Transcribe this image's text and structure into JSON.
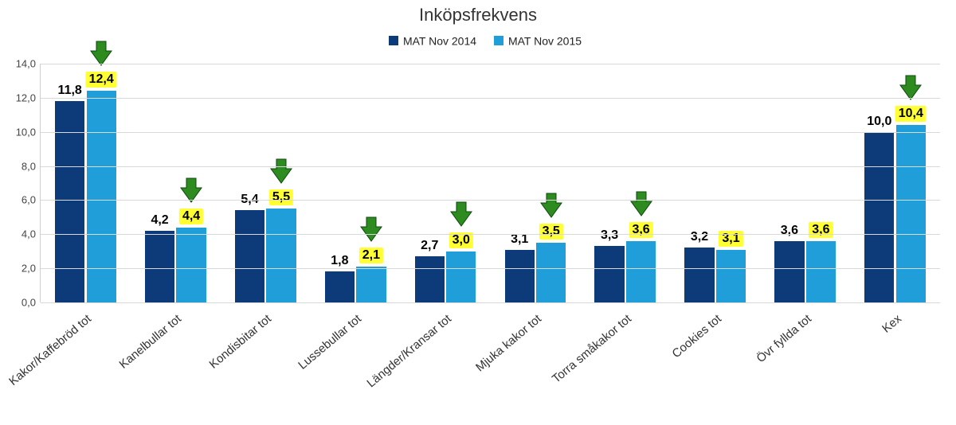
{
  "chart": {
    "type": "bar",
    "title": "Inköpsfrekvens",
    "title_fontsize": 22,
    "background_color": "#ffffff",
    "grid_color": "#d9d9d9",
    "axis_color": "#d0d0d0",
    "series_a": {
      "label": "MAT Nov 2014",
      "color": "#0d3a78"
    },
    "series_b": {
      "label": "MAT Nov 2015",
      "color": "#1f9ed9"
    },
    "ymin": 0.0,
    "ymax": 14.0,
    "ytick_step": 2.0,
    "yticks": [
      "0,0",
      "2,0",
      "4,0",
      "6,0",
      "8,0",
      "10,0",
      "12,0",
      "14,0"
    ],
    "label_fontsize": 15,
    "value_fontsize": 16,
    "highlight_bg": "#ffff33",
    "arrow_color": "#2e8b1f",
    "arrow_stroke": "#0b4a0b",
    "bar_width_pct": 33,
    "group_gap_pct": 15,
    "categories": [
      {
        "name": "Kakor/Kaffebröd tot",
        "a": 11.8,
        "b": 12.4,
        "a_label": "11,8",
        "b_label": "12,4",
        "highlight": true,
        "arrow": true
      },
      {
        "name": "Kanelbullar tot",
        "a": 4.2,
        "b": 4.4,
        "a_label": "4,2",
        "b_label": "4,4",
        "highlight": true,
        "arrow": true
      },
      {
        "name": "Kondisbitar tot",
        "a": 5.4,
        "b": 5.5,
        "a_label": "5,4",
        "b_label": "5,5",
        "highlight": true,
        "arrow": true
      },
      {
        "name": "Lussebullar tot",
        "a": 1.8,
        "b": 2.1,
        "a_label": "1,8",
        "b_label": "2,1",
        "highlight": true,
        "arrow": true
      },
      {
        "name": "Längder/Kransar tot",
        "a": 2.7,
        "b": 3.0,
        "a_label": "2,7",
        "b_label": "3,0",
        "highlight": true,
        "arrow": true
      },
      {
        "name": "Mjuka kakor tot",
        "a": 3.1,
        "b": 3.5,
        "a_label": "3,1",
        "b_label": "3,5",
        "highlight": true,
        "arrow": true
      },
      {
        "name": "Torra småkakor tot",
        "a": 3.3,
        "b": 3.6,
        "a_label": "3,3",
        "b_label": "3,6",
        "highlight": true,
        "arrow": true
      },
      {
        "name": "Cookies tot",
        "a": 3.2,
        "b": 3.1,
        "a_label": "3,2",
        "b_label": "3,1",
        "highlight": true,
        "arrow": false
      },
      {
        "name": "Övr fyllda tot",
        "a": 3.6,
        "b": 3.6,
        "a_label": "3,6",
        "b_label": "3,6",
        "highlight": true,
        "arrow": false
      },
      {
        "name": "Kex",
        "a": 10.0,
        "b": 10.4,
        "a_label": "10,0",
        "b_label": "10,4",
        "highlight": true,
        "arrow": true
      }
    ]
  }
}
